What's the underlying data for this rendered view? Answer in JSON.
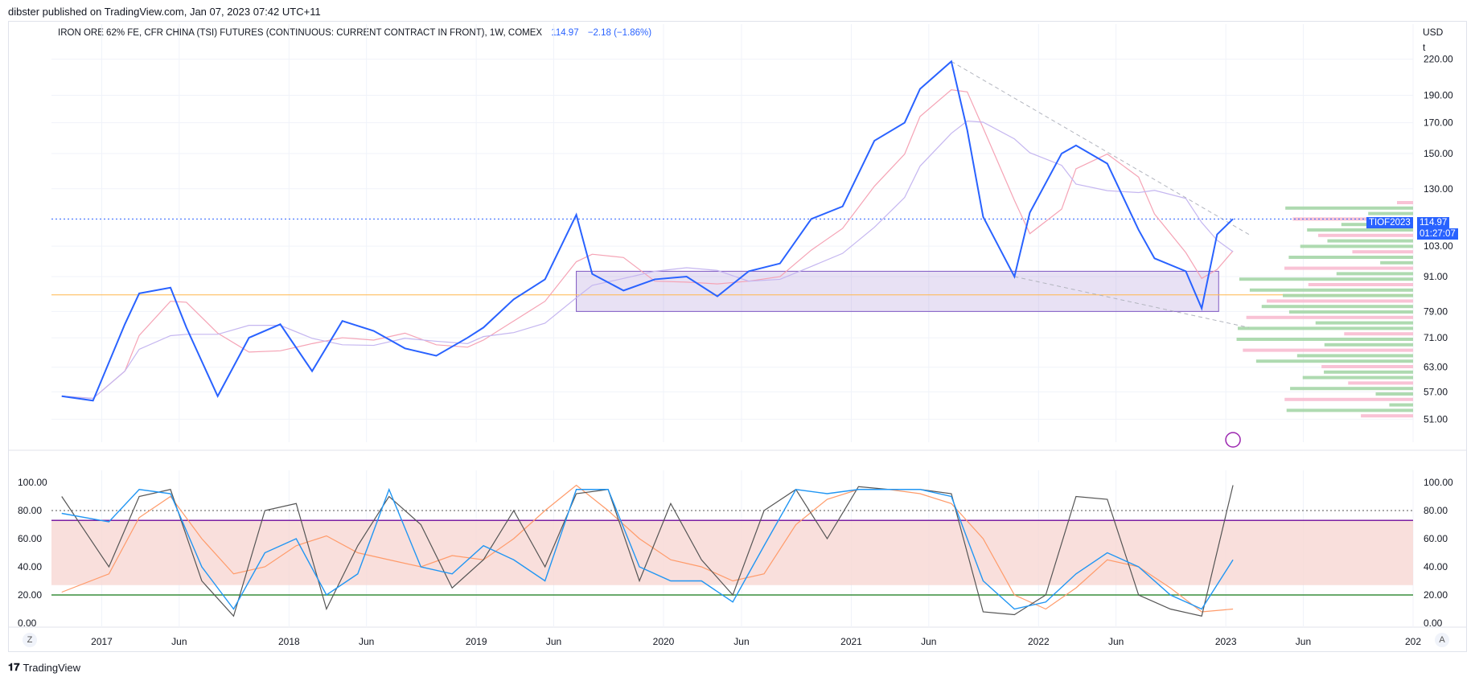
{
  "header": {
    "published": "dibster published on TradingView.com, Jan 07, 2023 07:42 UTC+11"
  },
  "legend": {
    "symbol": "IRON ORE 62% FE, CFR CHINA (TSI) FUTURES (CONTINUOUS: CURRENT CONTRACT IN FRONT), 1W, COMEX",
    "last": "114.97",
    "change": "−2.18 (−1.86%)"
  },
  "price_axis": {
    "currency": "USD",
    "unit": "t",
    "ticks": [
      "220.00",
      "190.00",
      "170.00",
      "150.00",
      "130.00",
      "114.97",
      "103.00",
      "91.00",
      "79.00",
      "71.00",
      "63.00",
      "57.00",
      "51.00"
    ]
  },
  "price_tag": {
    "ticker": "TIOF2023",
    "price": "114.97",
    "countdown": "01:27:07"
  },
  "time_axis": {
    "labels": [
      "2017",
      "Jun",
      "2018",
      "Jun",
      "2019",
      "Jun",
      "2020",
      "Jun",
      "2021",
      "Jun",
      "2022",
      "Jun",
      "2023",
      "Jun",
      "202"
    ]
  },
  "osc_axis_left": [
    "100.00",
    "80.00",
    "60.00",
    "40.00",
    "20.00",
    "0.00"
  ],
  "osc_axis_right": [
    "100.00",
    "80.00",
    "60.00",
    "40.00",
    "20.00",
    "0.00"
  ],
  "footer": {
    "brand": "TradingView",
    "left_button": "Z",
    "right_button": "A"
  },
  "colors": {
    "price": "#2962ff",
    "ma_fast": "#f5a3b5",
    "ma_slow": "#c5b6f0",
    "box": "#7e57c2",
    "hline": "#ffb74d",
    "stoch_k": "#2196f3",
    "stoch_d": "#ff9b6a",
    "stoch_alt": "#555555",
    "osc_band": "#f8d7d3"
  },
  "chart_data": [
    {
      "type": "line",
      "title": "IRON ORE 62% FE, CFR CHINA (TSI) FUTURES (CONTINUOUS: CURRENT CONTRACT IN FRONT), 1W, COMEX",
      "xlabel": "",
      "ylabel": "USD / t",
      "scale": "log",
      "ylim": [
        48,
        230
      ],
      "x": [
        "2016-10",
        "2016-12",
        "2017-02",
        "2017-03",
        "2017-05",
        "2017-06",
        "2017-08",
        "2017-10",
        "2017-12",
        "2018-02",
        "2018-04",
        "2018-06",
        "2018-08",
        "2018-10",
        "2018-12",
        "2019-01",
        "2019-03",
        "2019-05",
        "2019-07",
        "2019-08",
        "2019-10",
        "2019-12",
        "2020-02",
        "2020-04",
        "2020-06",
        "2020-08",
        "2020-10",
        "2020-12",
        "2021-02",
        "2021-04",
        "2021-05",
        "2021-07",
        "2021-08",
        "2021-09",
        "2021-11",
        "2021-12",
        "2022-02",
        "2022-03",
        "2022-05",
        "2022-07",
        "2022-08",
        "2022-10",
        "2022-11",
        "2022-12",
        "2023-01"
      ],
      "series": [
        {
          "values": [
            56,
            55,
            75,
            85,
            87,
            74,
            56,
            71,
            75,
            62,
            76,
            73,
            68,
            66,
            71,
            74,
            83,
            90,
            117,
            92,
            86,
            90,
            91,
            84,
            93,
            96,
            115,
            121,
            158,
            170,
            195,
            218,
            165,
            116,
            91,
            118,
            150,
            155,
            144,
            110,
            98,
            93,
            80,
            108,
            115
          ]
        }
      ],
      "levels": {
        "last_price": 114.97,
        "support_line": 84.5
      },
      "box": {
        "x": [
          "2019-07",
          "2022-09"
        ],
        "y": [
          79,
          93
        ]
      }
    },
    {
      "type": "line",
      "title": "",
      "ylim": [
        0,
        100
      ],
      "x": [
        "2016-10",
        "2017-01",
        "2017-03",
        "2017-05",
        "2017-07",
        "2017-09",
        "2017-11",
        "2018-01",
        "2018-03",
        "2018-05",
        "2018-07",
        "2018-09",
        "2018-11",
        "2019-01",
        "2019-03",
        "2019-05",
        "2019-07",
        "2019-09",
        "2019-11",
        "2020-01",
        "2020-03",
        "2020-05",
        "2020-07",
        "2020-09",
        "2020-11",
        "2021-01",
        "2021-03",
        "2021-05",
        "2021-07",
        "2021-09",
        "2021-11",
        "2022-01",
        "2022-03",
        "2022-05",
        "2022-07",
        "2022-09",
        "2022-11",
        "2023-01"
      ],
      "series": [
        {
          "values": [
            78,
            72,
            95,
            92,
            40,
            10,
            50,
            60,
            20,
            35,
            95,
            40,
            35,
            55,
            45,
            30,
            95,
            95,
            40,
            30,
            30,
            15,
            55,
            95,
            92,
            95,
            95,
            95,
            90,
            30,
            10,
            15,
            35,
            50,
            40,
            20,
            10,
            45
          ]
        },
        {
          "values": [
            22,
            35,
            75,
            90,
            60,
            35,
            40,
            55,
            62,
            50,
            45,
            40,
            48,
            45,
            60,
            80,
            98,
            80,
            60,
            45,
            40,
            30,
            35,
            70,
            88,
            95,
            95,
            92,
            85,
            60,
            20,
            10,
            25,
            45,
            40,
            25,
            8,
            10
          ]
        },
        {
          "values": [
            90,
            40,
            90,
            95,
            30,
            5,
            80,
            85,
            10,
            55,
            90,
            70,
            25,
            45,
            80,
            40,
            92,
            95,
            30,
            85,
            45,
            20,
            80,
            95,
            60,
            97,
            95,
            95,
            92,
            8,
            6,
            20,
            90,
            88,
            20,
            10,
            5,
            98
          ]
        }
      ],
      "levels": {
        "upper": 80,
        "band_top": 73,
        "band_bottom": 27,
        "lower": 20
      }
    }
  ]
}
